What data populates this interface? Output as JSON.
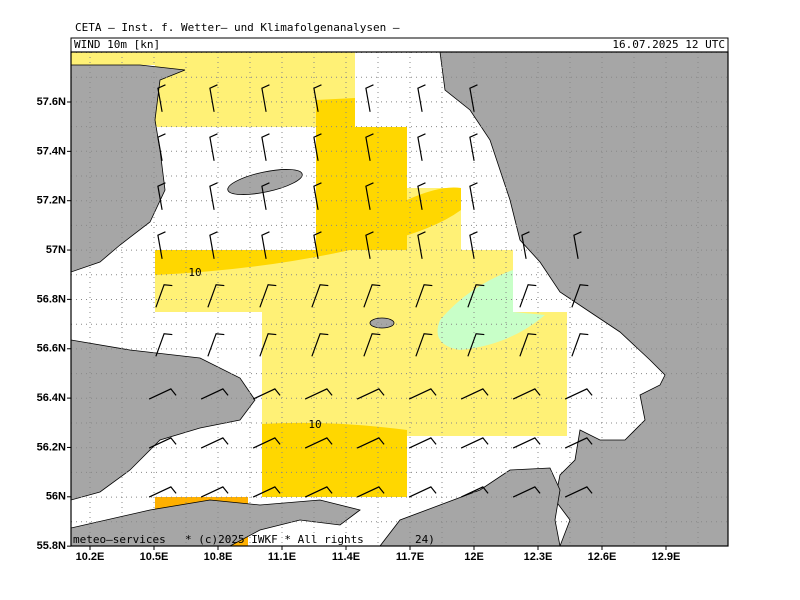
{
  "header": {
    "title": "CETA — Inst. f. Wetter— und Klimafolgenanalysen —",
    "field": "WIND 10m [kn]",
    "valid": "16.07.2025 12 UTC"
  },
  "axes": {
    "lat_labels": [
      "57.6N",
      "57.4N",
      "57.2N",
      "57N",
      "56.8N",
      "56.6N",
      "56.4N",
      "56.2N",
      "56N",
      "55.8N"
    ],
    "lon_labels": [
      "10.2E",
      "10.5E",
      "10.8E",
      "11.1E",
      "11.4E",
      "11.7E",
      "12E",
      "12.3E",
      "12.6E",
      "12.9E"
    ]
  },
  "contour_labels": [
    "10",
    "10"
  ],
  "footer": {
    "left": "meteo—services",
    "center": "* (c)2025 IWKF * All rights",
    "right": "24)"
  }
}
